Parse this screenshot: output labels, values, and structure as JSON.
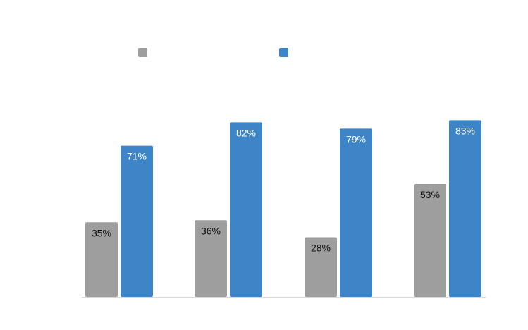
{
  "chart_data": {
    "type": "bar",
    "categories": [
      "",
      "",
      "",
      ""
    ],
    "series": [
      {
        "color": "#9e9e9e",
        "label_color": "#111111",
        "values": [
          35,
          36,
          28,
          53
        ]
      },
      {
        "color": "#3d85c6",
        "label_color": "#ffffff",
        "values": [
          71,
          82,
          79,
          83
        ]
      }
    ],
    "data_labels": [
      [
        "35%",
        "36%",
        "28%",
        "53%"
      ],
      [
        "71%",
        "82%",
        "79%",
        "83%"
      ]
    ],
    "ylim": [
      0,
      100
    ],
    "grid": false,
    "legend": "top",
    "legend_entries": [
      "",
      ""
    ],
    "title": "",
    "xlabel": "",
    "ylabel": ""
  }
}
